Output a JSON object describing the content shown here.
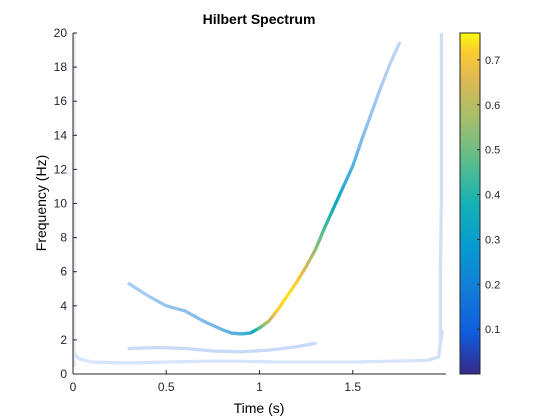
{
  "chart_data": {
    "type": "heatmap",
    "title": "Hilbert Spectrum",
    "xlabel": "Time (s)",
    "ylabel": "Frequency (Hz)",
    "xlim": [
      0,
      2
    ],
    "ylim": [
      0,
      20
    ],
    "xticks": [
      0,
      0.5,
      1,
      1.5
    ],
    "xtick_labels": [
      "0",
      "0.5",
      "1",
      "1.5"
    ],
    "yticks": [
      0,
      2,
      4,
      6,
      8,
      10,
      12,
      14,
      16,
      18,
      20
    ],
    "ytick_labels": [
      "0",
      "2",
      "4",
      "6",
      "8",
      "10",
      "12",
      "14",
      "16",
      "18",
      "20"
    ],
    "grid": false,
    "colormap": "parula",
    "colorbar": {
      "range": [
        0,
        0.76
      ],
      "ticks": [
        0.1,
        0.2,
        0.3,
        0.4,
        0.5,
        0.6,
        0.7
      ],
      "tick_labels": [
        "0.1",
        "0.2",
        "0.3",
        "0.4",
        "0.5",
        "0.6",
        "0.7"
      ]
    },
    "series": [
      {
        "points": [
          [
            0.3,
            5.3
          ],
          [
            0.4,
            4.6
          ],
          [
            0.5,
            4.0
          ],
          [
            0.6,
            3.7
          ],
          [
            0.7,
            3.1
          ],
          [
            0.8,
            2.6
          ],
          [
            0.85,
            2.4
          ],
          [
            0.9,
            2.35
          ],
          [
            0.95,
            2.4
          ],
          [
            1.0,
            2.7
          ],
          [
            1.05,
            3.1
          ],
          [
            1.1,
            3.8
          ],
          [
            1.15,
            4.6
          ],
          [
            1.2,
            5.4
          ],
          [
            1.25,
            6.3
          ],
          [
            1.3,
            7.3
          ],
          [
            1.35,
            8.6
          ],
          [
            1.4,
            9.8
          ],
          [
            1.45,
            11.0
          ],
          [
            1.5,
            12.2
          ],
          [
            1.55,
            13.8
          ],
          [
            1.6,
            15.3
          ],
          [
            1.65,
            16.8
          ],
          [
            1.7,
            18.2
          ],
          [
            1.75,
            19.4
          ]
        ],
        "amplitude": [
          0.15,
          0.15,
          0.17,
          0.18,
          0.2,
          0.22,
          0.24,
          0.26,
          0.28,
          0.45,
          0.6,
          0.72,
          0.74,
          0.72,
          0.65,
          0.55,
          0.45,
          0.37,
          0.3,
          0.25,
          0.2,
          0.17,
          0.15,
          0.13,
          0.12
        ]
      },
      {
        "points": [
          [
            0.0,
            1.3
          ],
          [
            0.03,
            0.9
          ],
          [
            0.1,
            0.7
          ],
          [
            0.3,
            0.65
          ],
          [
            0.5,
            0.7
          ],
          [
            0.7,
            0.75
          ],
          [
            0.9,
            0.75
          ],
          [
            1.1,
            0.7
          ],
          [
            1.3,
            0.7
          ],
          [
            1.5,
            0.7
          ],
          [
            1.7,
            0.75
          ],
          [
            1.9,
            0.8
          ],
          [
            1.96,
            1.0
          ],
          [
            1.98,
            2.5
          ]
        ],
        "amplitude": [
          0.1,
          0.09,
          0.09,
          0.09,
          0.09,
          0.09,
          0.09,
          0.09,
          0.09,
          0.09,
          0.09,
          0.09,
          0.1,
          0.1
        ]
      },
      {
        "points": [
          [
            0.3,
            1.5
          ],
          [
            0.45,
            1.55
          ],
          [
            0.6,
            1.5
          ],
          [
            0.75,
            1.35
          ],
          [
            0.9,
            1.3
          ],
          [
            1.05,
            1.4
          ],
          [
            1.2,
            1.6
          ],
          [
            1.3,
            1.8
          ]
        ],
        "amplitude": [
          0.11,
          0.11,
          0.11,
          0.11,
          0.11,
          0.11,
          0.11,
          0.11
        ]
      },
      {
        "points": [
          [
            1.97,
            2.0
          ],
          [
            1.97,
            6.0
          ],
          [
            1.975,
            10.0
          ],
          [
            1.975,
            14.0
          ],
          [
            1.975,
            18.0
          ],
          [
            1.975,
            20.0
          ]
        ],
        "amplitude": [
          0.1,
          0.1,
          0.1,
          0.1,
          0.1,
          0.1
        ]
      },
      {
        "points": [
          [
            0.005,
            0.5
          ],
          [
            0.005,
            5.0
          ],
          [
            0.005,
            10.0
          ],
          [
            0.005,
            15.0
          ],
          [
            0.005,
            20.0
          ]
        ],
        "amplitude": [
          0.05,
          0.05,
          0.05,
          0.05,
          0.05
        ]
      }
    ]
  }
}
